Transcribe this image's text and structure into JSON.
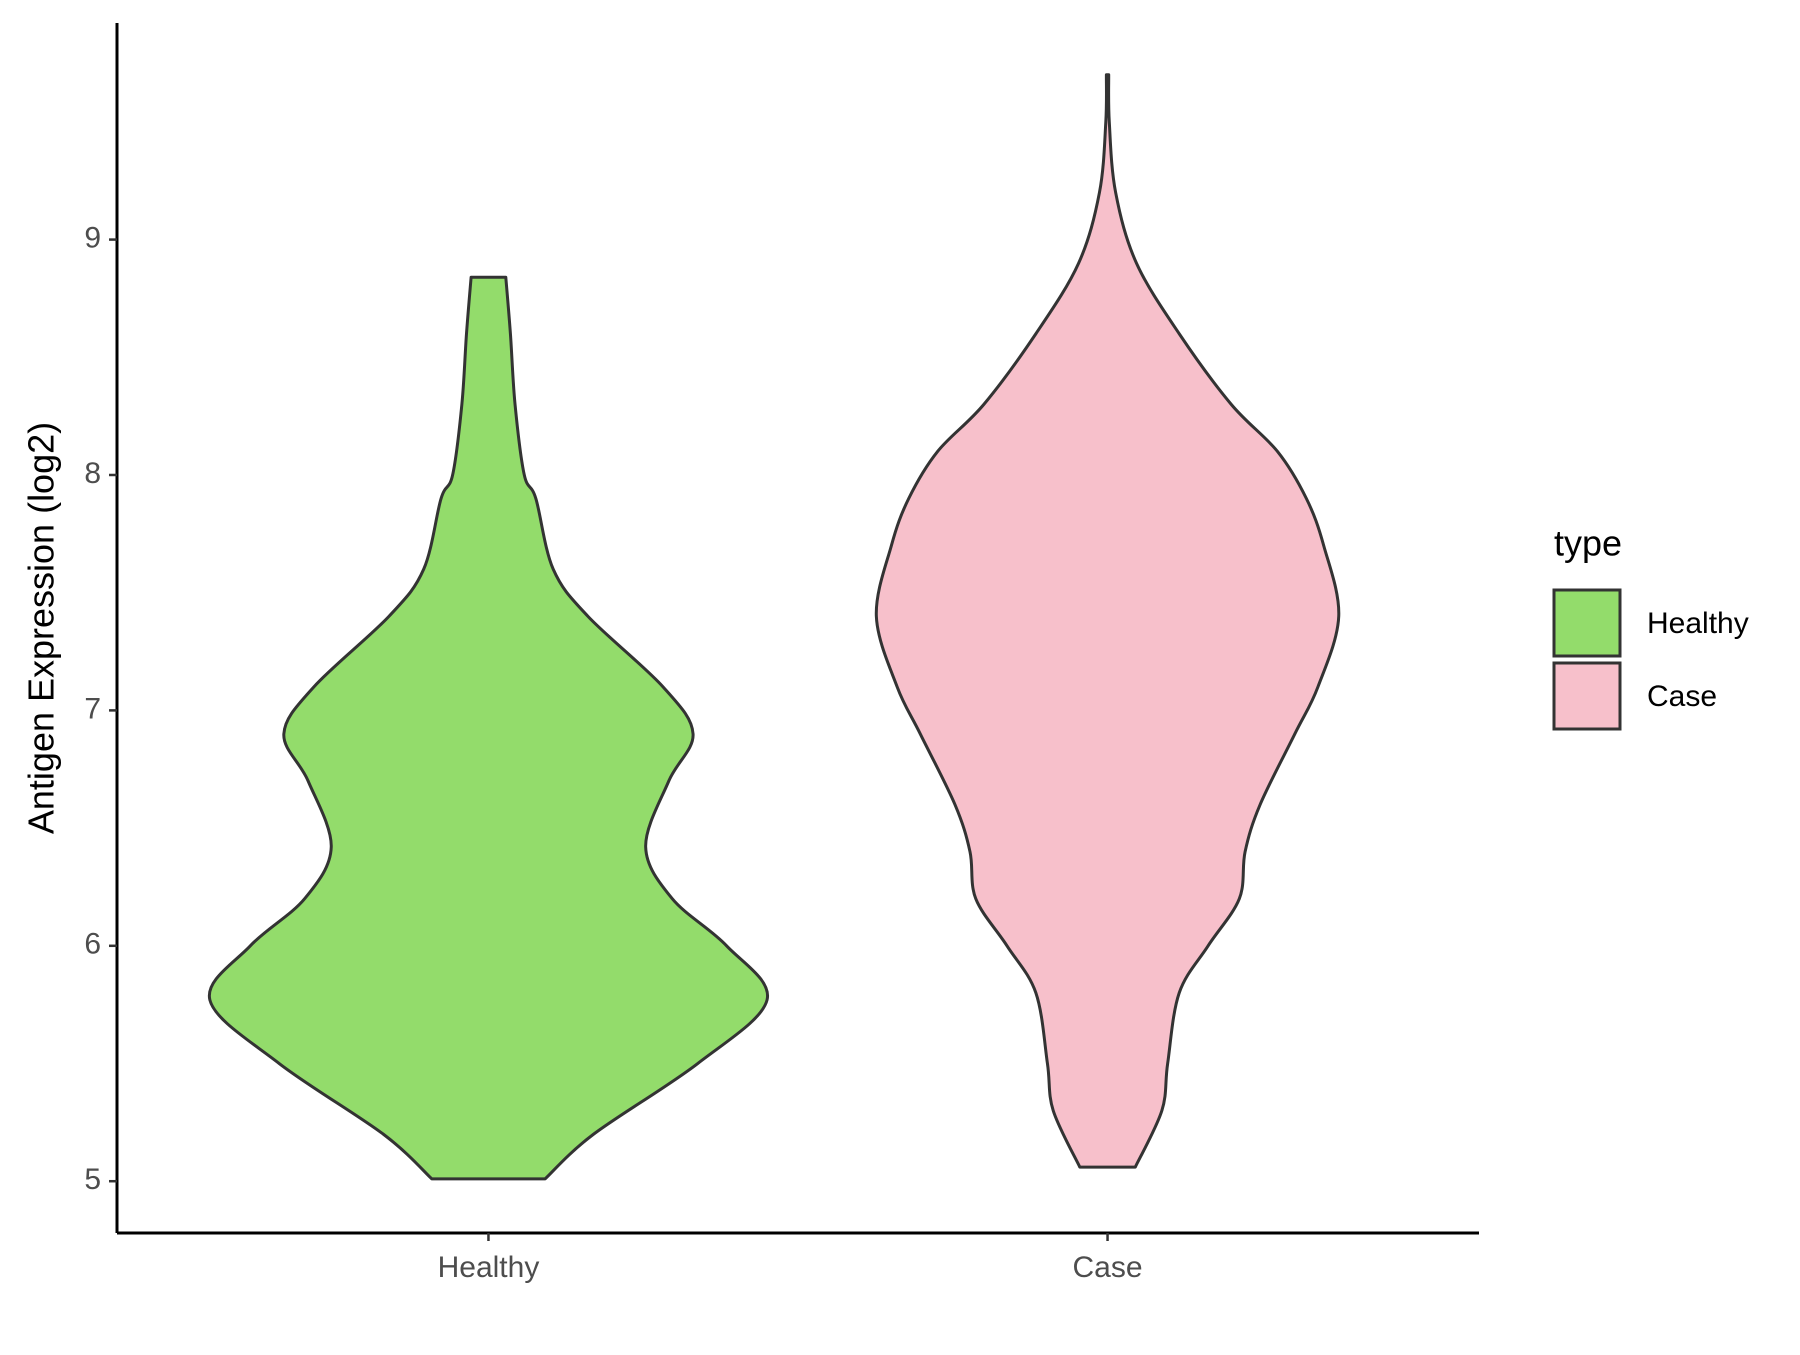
{
  "chart_data": {
    "type": "violin",
    "y_label": "Antigen Expression (log2)",
    "categories": [
      "Healthy",
      "Case"
    ],
    "series": [
      {
        "name": "Healthy",
        "color": "#93dc6b",
        "y": [
          5.01,
          5.2,
          5.5,
          5.77,
          6.0,
          6.2,
          6.42,
          6.7,
          6.9,
          7.1,
          7.4,
          7.6,
          7.9,
          8.0,
          8.3,
          8.6,
          8.84
        ],
        "density": [
          0.49,
          0.91,
          1.81,
          2.41,
          2.06,
          1.59,
          1.36,
          1.56,
          1.77,
          1.51,
          0.86,
          0.56,
          0.41,
          0.31,
          0.23,
          0.19,
          0.15
        ]
      },
      {
        "name": "Case",
        "color": "#f7c0cb",
        "y": [
          5.06,
          5.3,
          5.5,
          5.8,
          6.0,
          6.2,
          6.4,
          6.6,
          6.9,
          7.1,
          7.4,
          7.7,
          7.9,
          8.1,
          8.3,
          8.6,
          8.9,
          9.2,
          9.5,
          9.7
        ],
        "density": [
          0.24,
          0.47,
          0.52,
          0.62,
          0.87,
          1.14,
          1.19,
          1.32,
          1.62,
          1.82,
          2.0,
          1.87,
          1.72,
          1.47,
          1.07,
          0.62,
          0.25,
          0.07,
          0.015,
          0.01
        ]
      }
    ],
    "ylim": [
      4.78,
      9.92
    ],
    "yticks": [
      5,
      6,
      7,
      8,
      9
    ],
    "legend_title": "type",
    "legend": "right",
    "grid": false
  }
}
